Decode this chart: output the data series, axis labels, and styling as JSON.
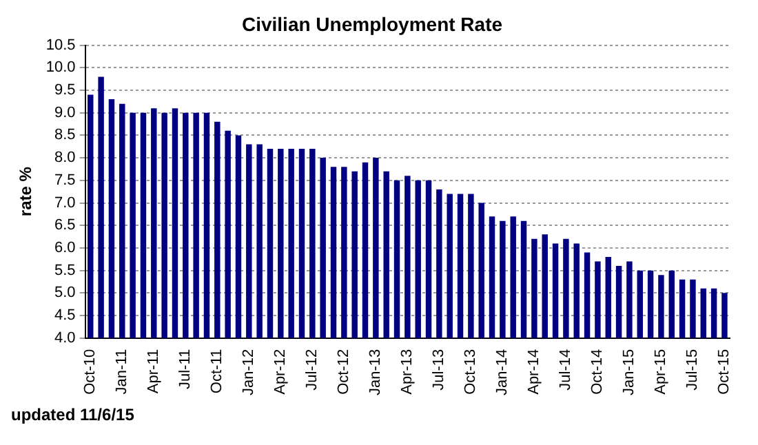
{
  "chart_data": {
    "type": "bar",
    "title": "Civilian Unemployment Rate",
    "ylabel": "rate %",
    "categories": [
      "Oct-10",
      null,
      null,
      "Jan-11",
      null,
      null,
      "Apr-11",
      null,
      null,
      "Jul-11",
      null,
      null,
      "Oct-11",
      null,
      null,
      "Jan-12",
      null,
      null,
      "Apr-12",
      null,
      null,
      "Jul-12",
      null,
      null,
      "Oct-12",
      null,
      null,
      "Jan-13",
      null,
      null,
      "Apr-13",
      null,
      null,
      "Jul-13",
      null,
      null,
      "Oct-13",
      null,
      null,
      "Jan-14",
      null,
      null,
      "Apr-14",
      null,
      null,
      "Jul-14",
      null,
      null,
      "Oct-14",
      null,
      null,
      "Jan-15",
      null,
      null,
      "Apr-15",
      null,
      null,
      "Jul-15",
      null,
      null,
      "Oct-15"
    ],
    "values": [
      9.4,
      9.8,
      9.3,
      9.2,
      9.0,
      9.0,
      9.1,
      9.0,
      9.1,
      9.0,
      9.0,
      9.0,
      8.8,
      8.6,
      8.5,
      8.3,
      8.3,
      8.2,
      8.2,
      8.2,
      8.2,
      8.2,
      8.0,
      7.8,
      7.8,
      7.7,
      7.9,
      8.0,
      7.7,
      7.5,
      7.6,
      7.5,
      7.5,
      7.3,
      7.2,
      7.2,
      7.2,
      7.0,
      6.7,
      6.6,
      6.7,
      6.6,
      6.2,
      6.3,
      6.1,
      6.2,
      6.1,
      5.9,
      5.7,
      5.8,
      5.6,
      5.7,
      5.5,
      5.5,
      5.4,
      5.5,
      5.3,
      5.3,
      5.1,
      5.1,
      5.0
    ],
    "color": "#000080",
    "ylim": [
      4,
      10.5
    ],
    "yticks": [
      {
        "value": 4,
        "label": "4.0"
      },
      {
        "value": 4.5,
        "label": "4.5"
      },
      {
        "value": 5,
        "label": "5.0"
      },
      {
        "value": 5.5,
        "label": "5.5"
      },
      {
        "value": 6,
        "label": "6.0"
      },
      {
        "value": 6.5,
        "label": "6.5"
      },
      {
        "value": 7,
        "label": "7.0"
      },
      {
        "value": 7.5,
        "label": "7.5"
      },
      {
        "value": 8,
        "label": "8.0"
      },
      {
        "value": 8.5,
        "label": "8.5"
      },
      {
        "value": 9,
        "label": "9.0"
      },
      {
        "value": 9.5,
        "label": "9.5"
      },
      {
        "value": 10,
        "label": "10.0"
      },
      {
        "value": 10.5,
        "label": "10.5"
      }
    ],
    "grid": "y",
    "legend": false,
    "annotations": [
      "updated 11/6/15"
    ]
  }
}
